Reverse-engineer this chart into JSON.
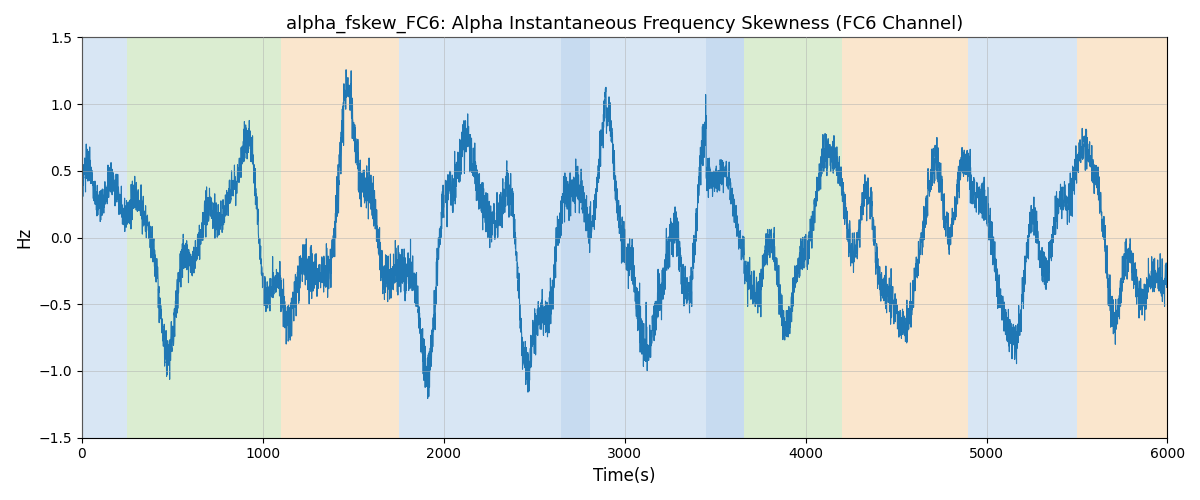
{
  "title": "alpha_fskew_FC6: Alpha Instantaneous Frequency Skewness (FC6 Channel)",
  "xlabel": "Time(s)",
  "ylabel": "Hz",
  "xlim": [
    0,
    6000
  ],
  "ylim": [
    -1.5,
    1.5
  ],
  "yticks": [
    -1.5,
    -1.0,
    -0.5,
    0.0,
    0.5,
    1.0,
    1.5
  ],
  "xticks": [
    0,
    1000,
    2000,
    3000,
    4000,
    5000,
    6000
  ],
  "line_color": "#1f77b4",
  "line_width": 0.8,
  "background_color": "#ffffff",
  "grid_color": "#b0b0b0",
  "regions": [
    {
      "start": 0,
      "end": 250,
      "color": "#aac8e8",
      "alpha": 0.45
    },
    {
      "start": 250,
      "end": 1100,
      "color": "#b0d89a",
      "alpha": 0.45
    },
    {
      "start": 1100,
      "end": 1750,
      "color": "#f5c890",
      "alpha": 0.45
    },
    {
      "start": 1750,
      "end": 2650,
      "color": "#aac8e8",
      "alpha": 0.45
    },
    {
      "start": 2650,
      "end": 2810,
      "color": "#aac8e8",
      "alpha": 0.65
    },
    {
      "start": 2810,
      "end": 3450,
      "color": "#aac8e8",
      "alpha": 0.45
    },
    {
      "start": 3450,
      "end": 3660,
      "color": "#aac8e8",
      "alpha": 0.65
    },
    {
      "start": 3660,
      "end": 4200,
      "color": "#b0d89a",
      "alpha": 0.45
    },
    {
      "start": 4200,
      "end": 4900,
      "color": "#f5c890",
      "alpha": 0.45
    },
    {
      "start": 4900,
      "end": 5500,
      "color": "#aac8e8",
      "alpha": 0.45
    },
    {
      "start": 5500,
      "end": 6000,
      "color": "#f5c890",
      "alpha": 0.45
    }
  ],
  "seed": 0,
  "n_points": 6000
}
